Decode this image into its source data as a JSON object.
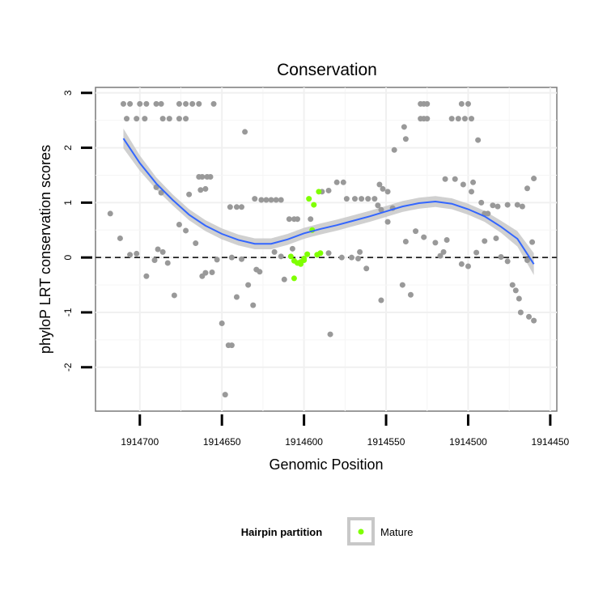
{
  "chart_data": {
    "type": "scatter",
    "title": "Conservation",
    "xlabel": "Genomic Position",
    "ylabel": "phyloP LRT conservation scores",
    "xlim": [
      1914727,
      1914446
    ],
    "x_reversed": true,
    "ylim": [
      -2.8,
      3.1
    ],
    "x_ticks": [
      1914700,
      1914650,
      1914600,
      1914550,
      1914500,
      1914450
    ],
    "y_ticks": [
      -2,
      -1,
      0,
      1,
      2,
      3
    ],
    "grid": true,
    "reference_line": {
      "y": 0,
      "style": "dashed"
    },
    "colors": {
      "background_points": "#999999",
      "mature": "#7fff00",
      "smooth": "#3366ff",
      "ribbon": "#c8c8c8"
    },
    "legend": {
      "title": "Hairpin partition",
      "position": "bottom",
      "entries": [
        {
          "label": "Mature",
          "color": "#7fff00"
        }
      ]
    },
    "smooth_fit": [
      {
        "x": 1914710,
        "y": 2.17
      },
      {
        "x": 1914700,
        "y": 1.72
      },
      {
        "x": 1914690,
        "y": 1.35
      },
      {
        "x": 1914680,
        "y": 1.05
      },
      {
        "x": 1914670,
        "y": 0.78
      },
      {
        "x": 1914660,
        "y": 0.58
      },
      {
        "x": 1914650,
        "y": 0.43
      },
      {
        "x": 1914640,
        "y": 0.32
      },
      {
        "x": 1914630,
        "y": 0.25
      },
      {
        "x": 1914620,
        "y": 0.25
      },
      {
        "x": 1914610,
        "y": 0.33
      },
      {
        "x": 1914600,
        "y": 0.44
      },
      {
        "x": 1914590,
        "y": 0.52
      },
      {
        "x": 1914580,
        "y": 0.59
      },
      {
        "x": 1914570,
        "y": 0.67
      },
      {
        "x": 1914560,
        "y": 0.75
      },
      {
        "x": 1914550,
        "y": 0.84
      },
      {
        "x": 1914540,
        "y": 0.93
      },
      {
        "x": 1914530,
        "y": 0.99
      },
      {
        "x": 1914520,
        "y": 1.02
      },
      {
        "x": 1914510,
        "y": 0.98
      },
      {
        "x": 1914500,
        "y": 0.88
      },
      {
        "x": 1914490,
        "y": 0.75
      },
      {
        "x": 1914480,
        "y": 0.56
      },
      {
        "x": 1914470,
        "y": 0.34
      },
      {
        "x": 1914460,
        "y": -0.12
      }
    ],
    "band_halfwidth": [
      0.18,
      0.14,
      0.11,
      0.1,
      0.1,
      0.1,
      0.1,
      0.1,
      0.1,
      0.1,
      0.1,
      0.1,
      0.1,
      0.1,
      0.1,
      0.1,
      0.1,
      0.1,
      0.1,
      0.1,
      0.1,
      0.1,
      0.1,
      0.11,
      0.14,
      0.2
    ],
    "series": [
      {
        "name": "Mature",
        "points": [
          [
            1914608,
            0.02
          ],
          [
            1914606,
            -0.06
          ],
          [
            1914604,
            -0.1
          ],
          [
            1914602,
            -0.08
          ],
          [
            1914600,
            -0.02
          ],
          [
            1914598,
            0.06
          ],
          [
            1914597,
            1.07
          ],
          [
            1914595,
            0.5
          ],
          [
            1914594,
            0.96
          ],
          [
            1914592,
            0.05
          ],
          [
            1914591,
            1.2
          ],
          [
            1914590,
            0.08
          ],
          [
            1914602,
            -0.12
          ],
          [
            1914606,
            -0.38
          ],
          [
            1914600,
            -0.05
          ]
        ]
      },
      {
        "name": "",
        "points": [
          [
            1914710,
            2.8
          ],
          [
            1914706,
            2.8
          ],
          [
            1914700,
            2.8
          ],
          [
            1914696,
            2.8
          ],
          [
            1914690,
            2.8
          ],
          [
            1914687,
            2.8
          ],
          [
            1914676,
            2.8
          ],
          [
            1914672,
            2.8
          ],
          [
            1914668,
            2.8
          ],
          [
            1914664,
            2.8
          ],
          [
            1914655,
            2.8
          ],
          [
            1914708,
            2.53
          ],
          [
            1914702,
            2.53
          ],
          [
            1914697,
            2.53
          ],
          [
            1914686,
            2.53
          ],
          [
            1914682,
            2.53
          ],
          [
            1914676,
            2.53
          ],
          [
            1914672,
            2.53
          ],
          [
            1914636,
            2.29
          ],
          [
            1914664,
            1.47
          ],
          [
            1914662,
            1.47
          ],
          [
            1914659,
            1.47
          ],
          [
            1914657,
            1.47
          ],
          [
            1914663,
            1.23
          ],
          [
            1914660,
            1.25
          ],
          [
            1914670,
            1.15
          ],
          [
            1914690,
            1.28
          ],
          [
            1914687,
            1.18
          ],
          [
            1914641,
            0.92
          ],
          [
            1914638,
            0.92
          ],
          [
            1914645,
            0.92
          ],
          [
            1914626,
            1.05
          ],
          [
            1914623,
            1.05
          ],
          [
            1914620,
            1.05
          ],
          [
            1914617,
            1.05
          ],
          [
            1914614,
            1.05
          ],
          [
            1914630,
            1.07
          ],
          [
            1914609,
            0.7
          ],
          [
            1914606,
            0.7
          ],
          [
            1914604,
            0.7
          ],
          [
            1914596,
            0.7
          ],
          [
            1914585,
            1.22
          ],
          [
            1914589,
            1.2
          ],
          [
            1914580,
            1.37
          ],
          [
            1914576,
            1.37
          ],
          [
            1914574,
            1.07
          ],
          [
            1914569,
            1.07
          ],
          [
            1914565,
            1.07
          ],
          [
            1914561,
            1.07
          ],
          [
            1914557,
            1.07
          ],
          [
            1914554,
            1.33
          ],
          [
            1914552,
            1.25
          ],
          [
            1914549,
            1.2
          ],
          [
            1914555,
            0.95
          ],
          [
            1914553,
            0.87
          ],
          [
            1914546,
            0.9
          ],
          [
            1914549,
            0.65
          ],
          [
            1914545,
            1.96
          ],
          [
            1914538,
            2.16
          ],
          [
            1914539,
            2.38
          ],
          [
            1914529,
            2.8
          ],
          [
            1914527,
            2.8
          ],
          [
            1914525,
            2.8
          ],
          [
            1914529,
            2.53
          ],
          [
            1914527,
            2.53
          ],
          [
            1914525,
            2.53
          ],
          [
            1914504,
            2.8
          ],
          [
            1914500,
            2.8
          ],
          [
            1914510,
            2.53
          ],
          [
            1914506,
            2.53
          ],
          [
            1914502,
            2.53
          ],
          [
            1914498,
            2.53
          ],
          [
            1914494,
            2.14
          ],
          [
            1914514,
            1.43
          ],
          [
            1914508,
            1.43
          ],
          [
            1914503,
            1.33
          ],
          [
            1914497,
            1.37
          ],
          [
            1914498,
            1.2
          ],
          [
            1914492,
            1.0
          ],
          [
            1914490,
            0.8
          ],
          [
            1914488,
            0.8
          ],
          [
            1914485,
            0.95
          ],
          [
            1914482,
            0.93
          ],
          [
            1914470,
            0.96
          ],
          [
            1914467,
            0.93
          ],
          [
            1914464,
            1.26
          ],
          [
            1914460,
            1.44
          ],
          [
            1914718,
            0.8
          ],
          [
            1914712,
            0.35
          ],
          [
            1914706,
            0.05
          ],
          [
            1914702,
            0.07
          ],
          [
            1914696,
            -0.34
          ],
          [
            1914691,
            -0.05
          ],
          [
            1914689,
            0.15
          ],
          [
            1914686,
            0.1
          ],
          [
            1914683,
            -0.1
          ],
          [
            1914679,
            -0.69
          ],
          [
            1914676,
            0.6
          ],
          [
            1914672,
            0.49
          ],
          [
            1914666,
            0.26
          ],
          [
            1914662,
            -0.34
          ],
          [
            1914660,
            -0.28
          ],
          [
            1914656,
            -0.27
          ],
          [
            1914653,
            -0.04
          ],
          [
            1914650,
            -1.2
          ],
          [
            1914648,
            -2.5
          ],
          [
            1914646,
            -1.6
          ],
          [
            1914644,
            -1.6
          ],
          [
            1914644,
            0.0
          ],
          [
            1914641,
            -0.72
          ],
          [
            1914638,
            -0.03
          ],
          [
            1914634,
            -0.5
          ],
          [
            1914631,
            -0.87
          ],
          [
            1914629,
            -0.22
          ],
          [
            1914627,
            -0.26
          ],
          [
            1914618,
            0.1
          ],
          [
            1914614,
            0.02
          ],
          [
            1914612,
            -0.4
          ],
          [
            1914607,
            0.16
          ],
          [
            1914584,
            -1.4
          ],
          [
            1914585,
            0.08
          ],
          [
            1914577,
            0.0
          ],
          [
            1914571,
            0.0
          ],
          [
            1914566,
            0.1
          ],
          [
            1914567,
            -0.02
          ],
          [
            1914562,
            -0.2
          ],
          [
            1914553,
            -0.78
          ],
          [
            1914540,
            -0.5
          ],
          [
            1914535,
            -0.68
          ],
          [
            1914538,
            0.29
          ],
          [
            1914532,
            0.48
          ],
          [
            1914527,
            0.37
          ],
          [
            1914520,
            0.27
          ],
          [
            1914517,
            0.03
          ],
          [
            1914515,
            0.1
          ],
          [
            1914513,
            0.32
          ],
          [
            1914504,
            -0.12
          ],
          [
            1914500,
            -0.16
          ],
          [
            1914495,
            0.09
          ],
          [
            1914490,
            0.3
          ],
          [
            1914483,
            0.35
          ],
          [
            1914480,
            0.01
          ],
          [
            1914476,
            -0.07
          ],
          [
            1914473,
            -0.5
          ],
          [
            1914471,
            -0.6
          ],
          [
            1914469,
            -0.75
          ],
          [
            1914468,
            -1.0
          ],
          [
            1914463,
            -1.08
          ],
          [
            1914460,
            -1.15
          ],
          [
            1914464,
            -0.05
          ],
          [
            1914461,
            0.28
          ],
          [
            1914476,
            0.96
          ]
        ]
      }
    ]
  }
}
